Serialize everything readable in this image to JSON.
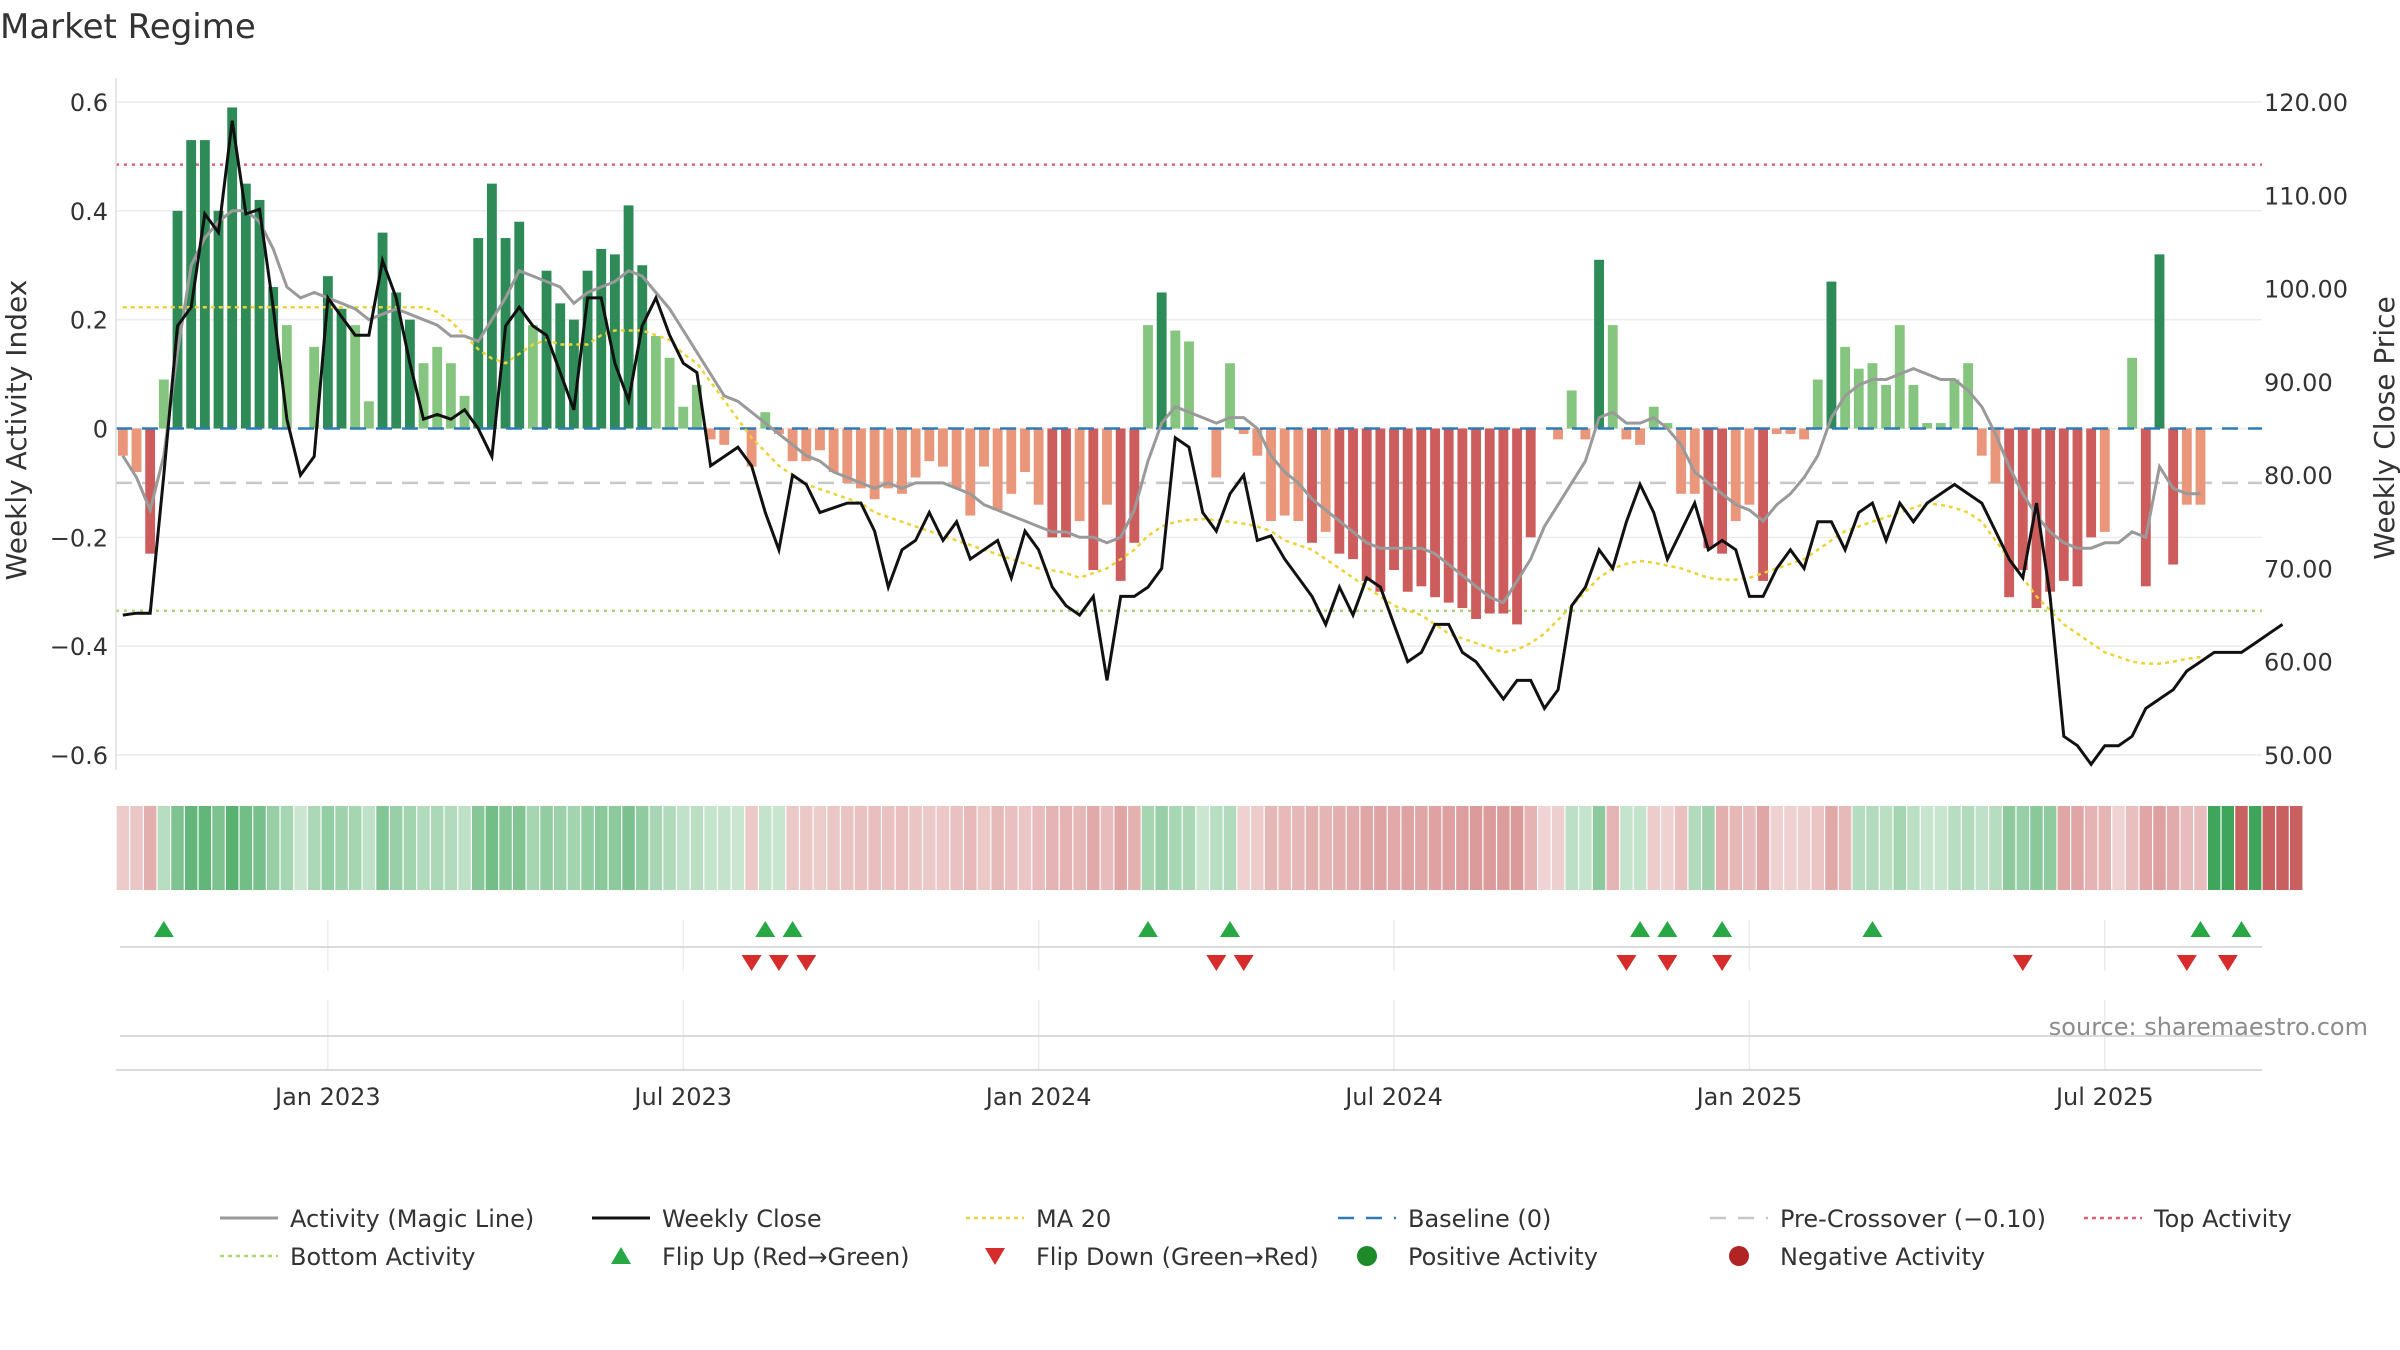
{
  "chart_data": {
    "type": "bar",
    "title": "Market Regime",
    "ylabel_left": "Weekly Activity Index",
    "ylabel_right": "Weekly Close Price",
    "left_ylim": [
      -0.6,
      0.6
    ],
    "left_yticks": [
      -0.6,
      -0.4,
      -0.2,
      0,
      0.2,
      0.4,
      0.6
    ],
    "left_ytick_labels": [
      "−0.6",
      "−0.4",
      "−0.2",
      "0",
      "0.2",
      "0.4",
      "0.6"
    ],
    "right_ylim": [
      50,
      120
    ],
    "right_yticks": [
      50,
      60,
      70,
      80,
      90,
      100,
      110,
      120
    ],
    "right_ytick_labels": [
      "50.00",
      "60.00",
      "70.00",
      "80.00",
      "90.00",
      "100.00",
      "110.00",
      "120.00"
    ],
    "x_tick_labels": [
      "Jan 2023",
      "Jul 2023",
      "Jan 2024",
      "Jul 2024",
      "Jan 2025",
      "Jul 2025"
    ],
    "x_tick_weeks": [
      15,
      41,
      67,
      93,
      119,
      145
    ],
    "n_weeks": 157,
    "first_week": "2022-10-03",
    "activity": [
      -0.05,
      -0.08,
      -0.23,
      0.09,
      0.4,
      0.53,
      0.53,
      0.4,
      0.59,
      0.45,
      0.42,
      0.26,
      0.19,
      0.0,
      0.15,
      0.28,
      0.22,
      0.19,
      0.05,
      0.36,
      0.25,
      0.2,
      0.12,
      0.15,
      0.12,
      0.06,
      0.35,
      0.45,
      0.35,
      0.38,
      0.19,
      0.29,
      0.23,
      0.2,
      0.29,
      0.33,
      0.32,
      0.41,
      0.3,
      0.17,
      0.13,
      0.04,
      0.08,
      -0.02,
      -0.03,
      0.0,
      -0.07,
      0.03,
      -0.01,
      -0.06,
      -0.06,
      -0.04,
      -0.08,
      -0.1,
      -0.11,
      -0.13,
      -0.11,
      -0.12,
      -0.09,
      -0.06,
      -0.07,
      -0.11,
      -0.16,
      -0.07,
      -0.15,
      -0.12,
      -0.08,
      -0.14,
      -0.2,
      -0.2,
      -0.17,
      -0.26,
      -0.14,
      -0.28,
      -0.21,
      0.19,
      0.25,
      0.18,
      0.16,
      0.0,
      -0.09,
      0.12,
      -0.01,
      -0.05,
      -0.17,
      -0.16,
      -0.17,
      -0.21,
      -0.19,
      -0.23,
      -0.24,
      -0.28,
      -0.3,
      -0.26,
      -0.3,
      -0.29,
      -0.31,
      -0.32,
      -0.33,
      -0.35,
      -0.34,
      -0.34,
      -0.36,
      -0.2,
      0.0,
      -0.02,
      0.07,
      -0.02,
      0.31,
      0.19,
      -0.02,
      -0.03,
      0.04,
      0.01,
      -0.12,
      -0.12,
      -0.22,
      -0.23,
      -0.17,
      -0.14,
      -0.28,
      -0.01,
      -0.01,
      -0.02,
      0.09,
      0.27,
      0.15,
      0.11,
      0.12,
      0.08,
      0.19,
      0.08,
      0.01,
      0.01,
      0.09,
      0.12,
      -0.05,
      -0.1,
      -0.31,
      -0.26,
      -0.33,
      -0.3,
      -0.28,
      -0.29,
      -0.2,
      -0.19,
      0.0,
      0.13,
      -0.29,
      0.32,
      -0.25,
      -0.14,
      -0.14
    ],
    "regime": [
      -1,
      -1,
      -1,
      1,
      1,
      1,
      1,
      1,
      1,
      1,
      1,
      1,
      1,
      1,
      1,
      1,
      1,
      1,
      1,
      1,
      1,
      1,
      1,
      1,
      1,
      1,
      1,
      1,
      1,
      1,
      1,
      1,
      1,
      1,
      1,
      1,
      1,
      1,
      1,
      1,
      1,
      1,
      1,
      1,
      1,
      1,
      -1,
      1,
      1,
      -1,
      -1,
      -1,
      -1,
      -1,
      -1,
      -1,
      -1,
      -1,
      -1,
      -1,
      -1,
      -1,
      -1,
      -1,
      -1,
      -1,
      -1,
      -1,
      -1,
      -1,
      -1,
      -1,
      -1,
      -1,
      -1,
      1,
      1,
      1,
      1,
      1,
      1,
      1,
      -1,
      -1,
      -1,
      -1,
      -1,
      -1,
      -1,
      -1,
      -1,
      -1,
      -1,
      -1,
      -1,
      -1,
      -1,
      -1,
      -1,
      -1,
      -1,
      -1,
      -1,
      -1,
      -1,
      -1,
      1,
      1,
      1,
      -1,
      1,
      1,
      -1,
      -1,
      -1,
      1,
      1,
      -1,
      -1,
      -1,
      -1,
      -1,
      -1,
      -1,
      -1,
      -1,
      -1,
      1,
      1,
      1,
      1,
      1,
      1,
      1,
      1,
      1,
      1,
      1,
      1,
      1,
      1,
      1,
      -1,
      -1,
      -1,
      -1,
      -1,
      -1,
      -1,
      -1,
      -1,
      -1,
      -1,
      1,
      1,
      -1,
      1,
      -1,
      -1,
      -1
    ],
    "magic_line": [
      -0.05,
      -0.09,
      -0.15,
      -0.05,
      0.14,
      0.3,
      0.35,
      0.38,
      0.4,
      0.4,
      0.38,
      0.33,
      0.26,
      0.24,
      0.25,
      0.24,
      0.23,
      0.22,
      0.2,
      0.21,
      0.22,
      0.21,
      0.2,
      0.19,
      0.17,
      0.17,
      0.16,
      0.2,
      0.24,
      0.29,
      0.28,
      0.27,
      0.26,
      0.23,
      0.25,
      0.26,
      0.27,
      0.29,
      0.28,
      0.25,
      0.22,
      0.18,
      0.14,
      0.1,
      0.06,
      0.05,
      0.03,
      0.01,
      -0.01,
      -0.03,
      -0.05,
      -0.06,
      -0.08,
      -0.09,
      -0.1,
      -0.11,
      -0.1,
      -0.11,
      -0.1,
      -0.1,
      -0.1,
      -0.11,
      -0.12,
      -0.14,
      -0.15,
      -0.16,
      -0.17,
      -0.18,
      -0.19,
      -0.19,
      -0.2,
      -0.2,
      -0.21,
      -0.2,
      -0.15,
      -0.06,
      0.01,
      0.04,
      0.03,
      0.02,
      0.01,
      0.02,
      0.02,
      0.0,
      -0.05,
      -0.08,
      -0.1,
      -0.13,
      -0.15,
      -0.17,
      -0.19,
      -0.21,
      -0.22,
      -0.22,
      -0.22,
      -0.22,
      -0.23,
      -0.25,
      -0.27,
      -0.29,
      -0.31,
      -0.32,
      -0.28,
      -0.24,
      -0.18,
      -0.14,
      -0.1,
      -0.06,
      0.02,
      0.03,
      0.01,
      0.01,
      0.02,
      0.0,
      -0.03,
      -0.08,
      -0.1,
      -0.12,
      -0.14,
      -0.15,
      -0.17,
      -0.14,
      -0.12,
      -0.09,
      -0.05,
      0.02,
      0.06,
      0.08,
      0.09,
      0.09,
      0.1,
      0.11,
      0.1,
      0.09,
      0.09,
      0.07,
      0.04,
      -0.01,
      -0.07,
      -0.12,
      -0.16,
      -0.19,
      -0.21,
      -0.22,
      -0.22,
      -0.21,
      -0.21,
      -0.19,
      -0.2,
      -0.07,
      -0.11,
      -0.12,
      -0.12
    ],
    "weekly_close": [
      65,
      65.2,
      65.2,
      80,
      96,
      98,
      108,
      106,
      118,
      108,
      108.5,
      98,
      86,
      80,
      82,
      99,
      97,
      95,
      95,
      103,
      99,
      92,
      86,
      86.5,
      86,
      87,
      85,
      82,
      96,
      98,
      96,
      95,
      91,
      87,
      99,
      99,
      92,
      88,
      96,
      99,
      95,
      92,
      91,
      81,
      82,
      83,
      81,
      76,
      72,
      80,
      79,
      76,
      76.5,
      77,
      77,
      74,
      68,
      72,
      73,
      76,
      73,
      75,
      71,
      72,
      73,
      69,
      74,
      72,
      68,
      66,
      65,
      67,
      58,
      67,
      67,
      68,
      70,
      84,
      83,
      76,
      74,
      78,
      80,
      73,
      73.5,
      71,
      69,
      67,
      64,
      68,
      65,
      69,
      68,
      64,
      60,
      61,
      64,
      64,
      61,
      60,
      58,
      56,
      58,
      58,
      55,
      57,
      66,
      68,
      72,
      70,
      75,
      79,
      76,
      71,
      74,
      77,
      72,
      73,
      72,
      67,
      67,
      70,
      72,
      70,
      75,
      75,
      72,
      76,
      77,
      73,
      77,
      75,
      77,
      78,
      79,
      78,
      77,
      74,
      71,
      69,
      77,
      67,
      52,
      51,
      49,
      51,
      51,
      52,
      55,
      56,
      57,
      59,
      60,
      61,
      61,
      61,
      62,
      63,
      64
    ],
    "ma20": [
      98,
      98,
      98,
      98,
      98,
      98,
      98,
      98,
      98,
      98,
      98,
      98,
      98,
      98,
      98,
      98,
      98,
      98,
      98,
      98,
      98,
      98,
      98,
      97.5,
      96.5,
      95,
      93.5,
      92.5,
      92,
      93,
      94,
      94.5,
      94,
      94,
      94,
      95,
      95.5,
      95.5,
      95.5,
      95,
      94.5,
      93,
      92,
      90,
      88,
      86,
      84,
      82.5,
      81,
      80,
      79,
      78.5,
      78,
      77.5,
      77,
      76,
      75.5,
      75,
      74.5,
      74,
      73.5,
      73,
      72.5,
      72,
      71.5,
      71,
      70.5,
      70,
      69.8,
      69.5,
      69,
      69.5,
      70,
      71,
      72,
      73.5,
      74.5,
      75,
      75.2,
      75.3,
      75.2,
      75,
      74.8,
      74.5,
      74,
      73,
      72.5,
      72,
      71,
      70,
      69,
      68,
      67,
      66,
      65.5,
      65,
      64,
      63,
      62.5,
      62,
      61.5,
      61,
      61.3,
      62,
      63,
      64.5,
      66,
      67.5,
      69,
      70,
      70.5,
      70.8,
      70.6,
      70.3,
      70,
      69.5,
      69,
      68.8,
      68.8,
      69,
      69.5,
      70,
      70.5,
      71,
      72,
      73,
      74,
      74.5,
      75,
      75.5,
      76,
      76.5,
      77,
      76.8,
      76.5,
      76,
      75,
      73,
      71,
      69,
      67,
      65.5,
      64,
      63,
      62,
      61,
      60.5,
      60,
      59.8,
      59.8,
      60,
      60.3,
      60.5
    ],
    "flip_up_weeks": [
      3,
      47,
      49,
      75,
      81,
      111,
      113,
      117,
      128,
      152,
      155
    ],
    "flip_down_weeks": [
      46,
      48,
      50,
      80,
      82,
      110,
      113,
      117,
      139,
      151,
      154
    ],
    "baseline": 0,
    "pre_crossover": -0.1,
    "top_activity": 0.485,
    "bottom_activity": -0.335,
    "legend": [
      {
        "label": "Activity (Magic Line)",
        "kind": "line",
        "color": "#999999"
      },
      {
        "label": "Weekly Close",
        "kind": "line",
        "color": "#111111"
      },
      {
        "label": "MA 20",
        "kind": "dotted",
        "color": "#ecd33a"
      },
      {
        "label": "Baseline (0)",
        "kind": "dashed",
        "color": "#2f7bb7"
      },
      {
        "label": "Pre-Crossover (−0.10)",
        "kind": "dashed",
        "color": "#c8c8c8"
      },
      {
        "label": "Top Activity",
        "kind": "dotted",
        "color": "#e0607a"
      },
      {
        "label": "Bottom Activity",
        "kind": "dotted",
        "color": "#a8d878"
      },
      {
        "label": "Flip Up (Red→Green)",
        "kind": "triangle-up",
        "color": "#28a745"
      },
      {
        "label": "Flip Down (Green→Red)",
        "kind": "triangle-down",
        "color": "#d62c2c"
      },
      {
        "label": "Positive Activity",
        "kind": "circle",
        "color": "#1f8a2a"
      },
      {
        "label": "Negative Activity",
        "kind": "circle",
        "color": "#b22424"
      }
    ],
    "legend_position": "bottom",
    "source": "source: sharemaestro.com"
  },
  "colors": {
    "pos_strong": "#2e8b57",
    "pos_light": "#86c57f",
    "neg_strong": "#cd5c5c",
    "neg_light": "#e9967a",
    "grid": "#ececec",
    "axis_text": "#333333"
  }
}
